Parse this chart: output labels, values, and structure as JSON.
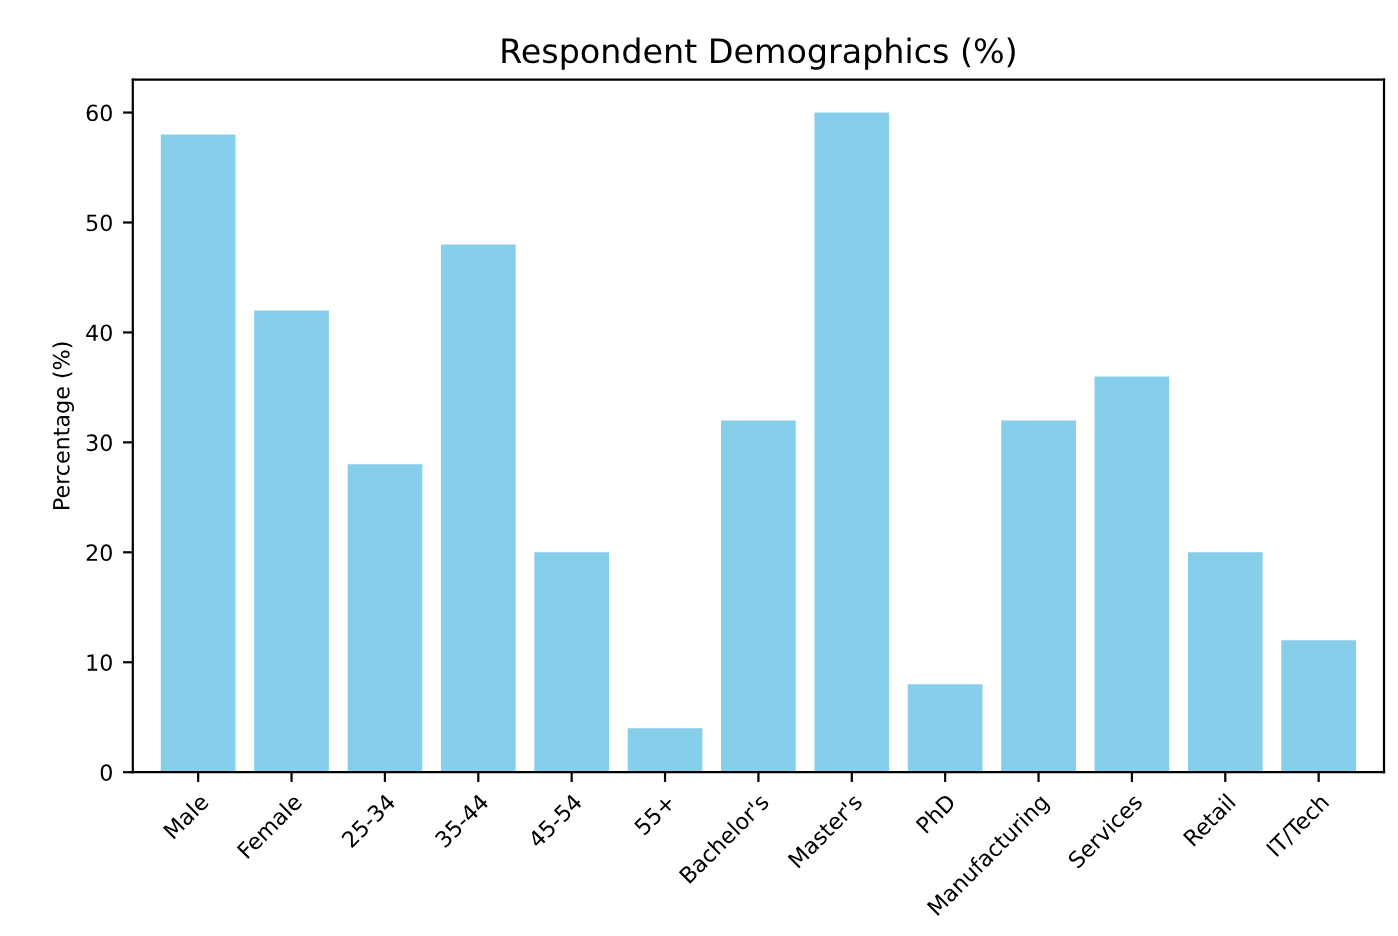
{
  "chart_data": {
    "type": "bar",
    "title": "Respondent Demographics (%)",
    "ylabel": "Percentage (%)",
    "categories": [
      "Male",
      "Female",
      "25-34",
      "35-44",
      "45-54",
      "55+",
      "Bachelor's",
      "Master's",
      "PhD",
      "Manufacturing",
      "Services",
      "Retail",
      "IT/Tech"
    ],
    "values": [
      58,
      42,
      28,
      48,
      20,
      4,
      32,
      60,
      8,
      32,
      36,
      20,
      12
    ],
    "color": "#87ceeb",
    "ylim": [
      0,
      63
    ],
    "yticks": [
      0,
      10,
      20,
      30,
      40,
      50,
      60
    ],
    "grid": false,
    "legend": false
  }
}
